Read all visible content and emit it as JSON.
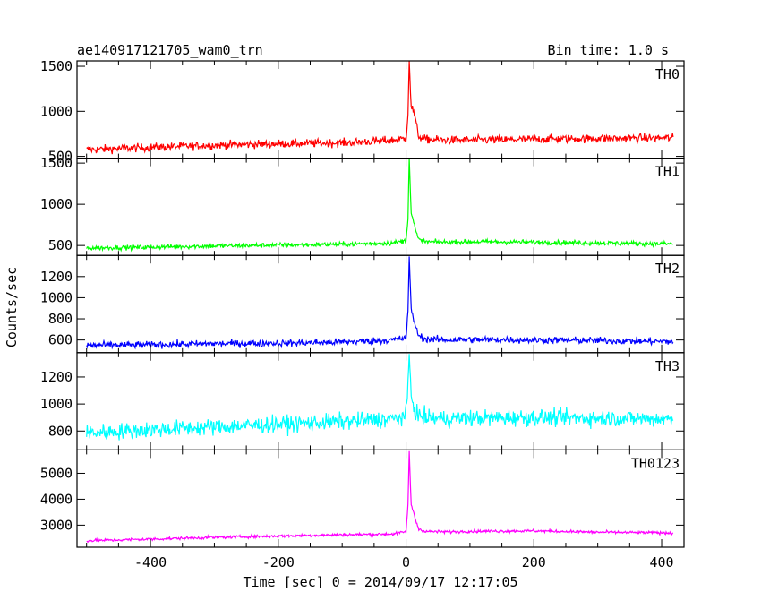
{
  "header": {
    "title": "ae140917121705_wam0_trn",
    "bin_time": "Bin time: 1.0 s"
  },
  "chart_data": {
    "type": "line",
    "title": "ae140917121705_wam0_trn",
    "subtitle": "Bin time: 1.0 s",
    "xlabel": "Time [sec] 0 = 2014/09/17 12:17:05",
    "ylabel": "Counts/sec",
    "xlim": [
      -515,
      435
    ],
    "xticks": [
      -400,
      -200,
      0,
      200,
      400
    ],
    "grid": false,
    "panels": [
      {
        "name": "TH0",
        "color": "#ff0000",
        "ylim": [
          480,
          1560
        ],
        "yticks": [
          500,
          1000,
          1500
        ],
        "baseline_start": 590,
        "baseline_end": 690,
        "peak": 1560,
        "noise": 45,
        "x": [
          -500,
          -400,
          -300,
          -200,
          -100,
          -20,
          0,
          3,
          5,
          8,
          12,
          16,
          20,
          30,
          60,
          100,
          200,
          300,
          418
        ],
        "y": [
          575,
          600,
          625,
          640,
          650,
          680,
          700,
          980,
          1560,
          1050,
          1000,
          850,
          720,
          690,
          680,
          680,
          690,
          700,
          705
        ]
      },
      {
        "name": "TH1",
        "color": "#00ff00",
        "ylim": [
          380,
          1560
        ],
        "yticks": [
          500,
          1000,
          1500
        ],
        "baseline_start": 475,
        "baseline_end": 520,
        "peak": 1560,
        "noise": 28,
        "x": [
          -500,
          -400,
          -300,
          -200,
          -100,
          -20,
          0,
          3,
          5,
          8,
          12,
          16,
          20,
          30,
          60,
          100,
          200,
          300,
          418
        ],
        "y": [
          470,
          480,
          495,
          505,
          515,
          530,
          560,
          850,
          1560,
          900,
          780,
          650,
          570,
          545,
          540,
          545,
          540,
          530,
          520
        ]
      },
      {
        "name": "TH2",
        "color": "#0000ff",
        "ylim": [
          480,
          1400
        ],
        "yticks": [
          600,
          800,
          1000,
          1200
        ],
        "baseline_start": 555,
        "baseline_end": 585,
        "peak": 1390,
        "noise": 32,
        "x": [
          -500,
          -400,
          -300,
          -200,
          -100,
          -20,
          0,
          3,
          5,
          8,
          12,
          16,
          20,
          30,
          60,
          100,
          200,
          300,
          418
        ],
        "y": [
          550,
          555,
          565,
          570,
          580,
          600,
          620,
          870,
          1390,
          880,
          800,
          700,
          640,
          610,
          600,
          605,
          600,
          595,
          585
        ]
      },
      {
        "name": "TH3",
        "color": "#00ffff",
        "ylim": [
          660,
          1380
        ],
        "yticks": [
          800,
          1000,
          1200
        ],
        "baseline_start": 780,
        "baseline_end": 900,
        "peak": 1370,
        "noise": 60,
        "x": [
          -500,
          -400,
          -300,
          -200,
          -100,
          -20,
          0,
          3,
          5,
          8,
          12,
          16,
          20,
          30,
          60,
          100,
          200,
          300,
          418
        ],
        "y": [
          785,
          810,
          830,
          850,
          870,
          890,
          910,
          1150,
          1370,
          1060,
          980,
          940,
          910,
          900,
          890,
          895,
          900,
          895,
          890
        ]
      },
      {
        "name": "TH0123",
        "color": "#ff00ff",
        "ylim": [
          2150,
          5900
        ],
        "yticks": [
          3000,
          4000,
          5000
        ],
        "baseline_start": 2400,
        "baseline_end": 2700,
        "peak": 5850,
        "noise": 55,
        "x": [
          -500,
          -400,
          -300,
          -200,
          -100,
          -20,
          0,
          3,
          5,
          8,
          12,
          16,
          20,
          30,
          60,
          100,
          200,
          300,
          418
        ],
        "y": [
          2400,
          2460,
          2530,
          2580,
          2630,
          2660,
          2750,
          3800,
          5850,
          3750,
          3500,
          3100,
          2850,
          2760,
          2740,
          2760,
          2780,
          2730,
          2700
        ]
      }
    ]
  }
}
